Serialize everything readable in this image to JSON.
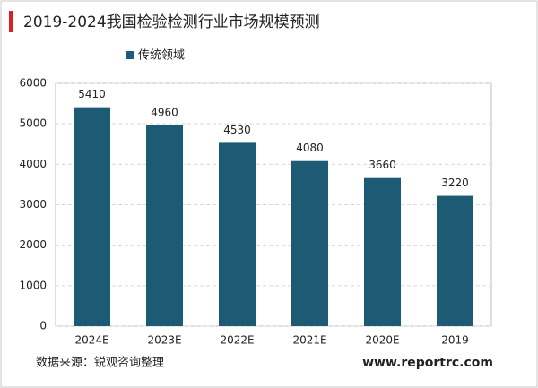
{
  "chart_data": {
    "type": "bar",
    "title": "2019-2024我国检验检测行业市场规模预测",
    "categories": [
      "2024E",
      "2023E",
      "2022E",
      "2021E",
      "2020E",
      "2019"
    ],
    "series": [
      {
        "name": "传统领域",
        "color": "#1d5a73",
        "values": [
          5410,
          4960,
          4530,
          4080,
          3660,
          3220
        ]
      }
    ],
    "ylim": [
      0,
      6000
    ],
    "yticks": [
      0,
      1000,
      2000,
      3000,
      4000,
      5000,
      6000
    ],
    "grid": true,
    "source": "数据来源：锐观咨询整理",
    "website": "www.reportrc.com"
  }
}
